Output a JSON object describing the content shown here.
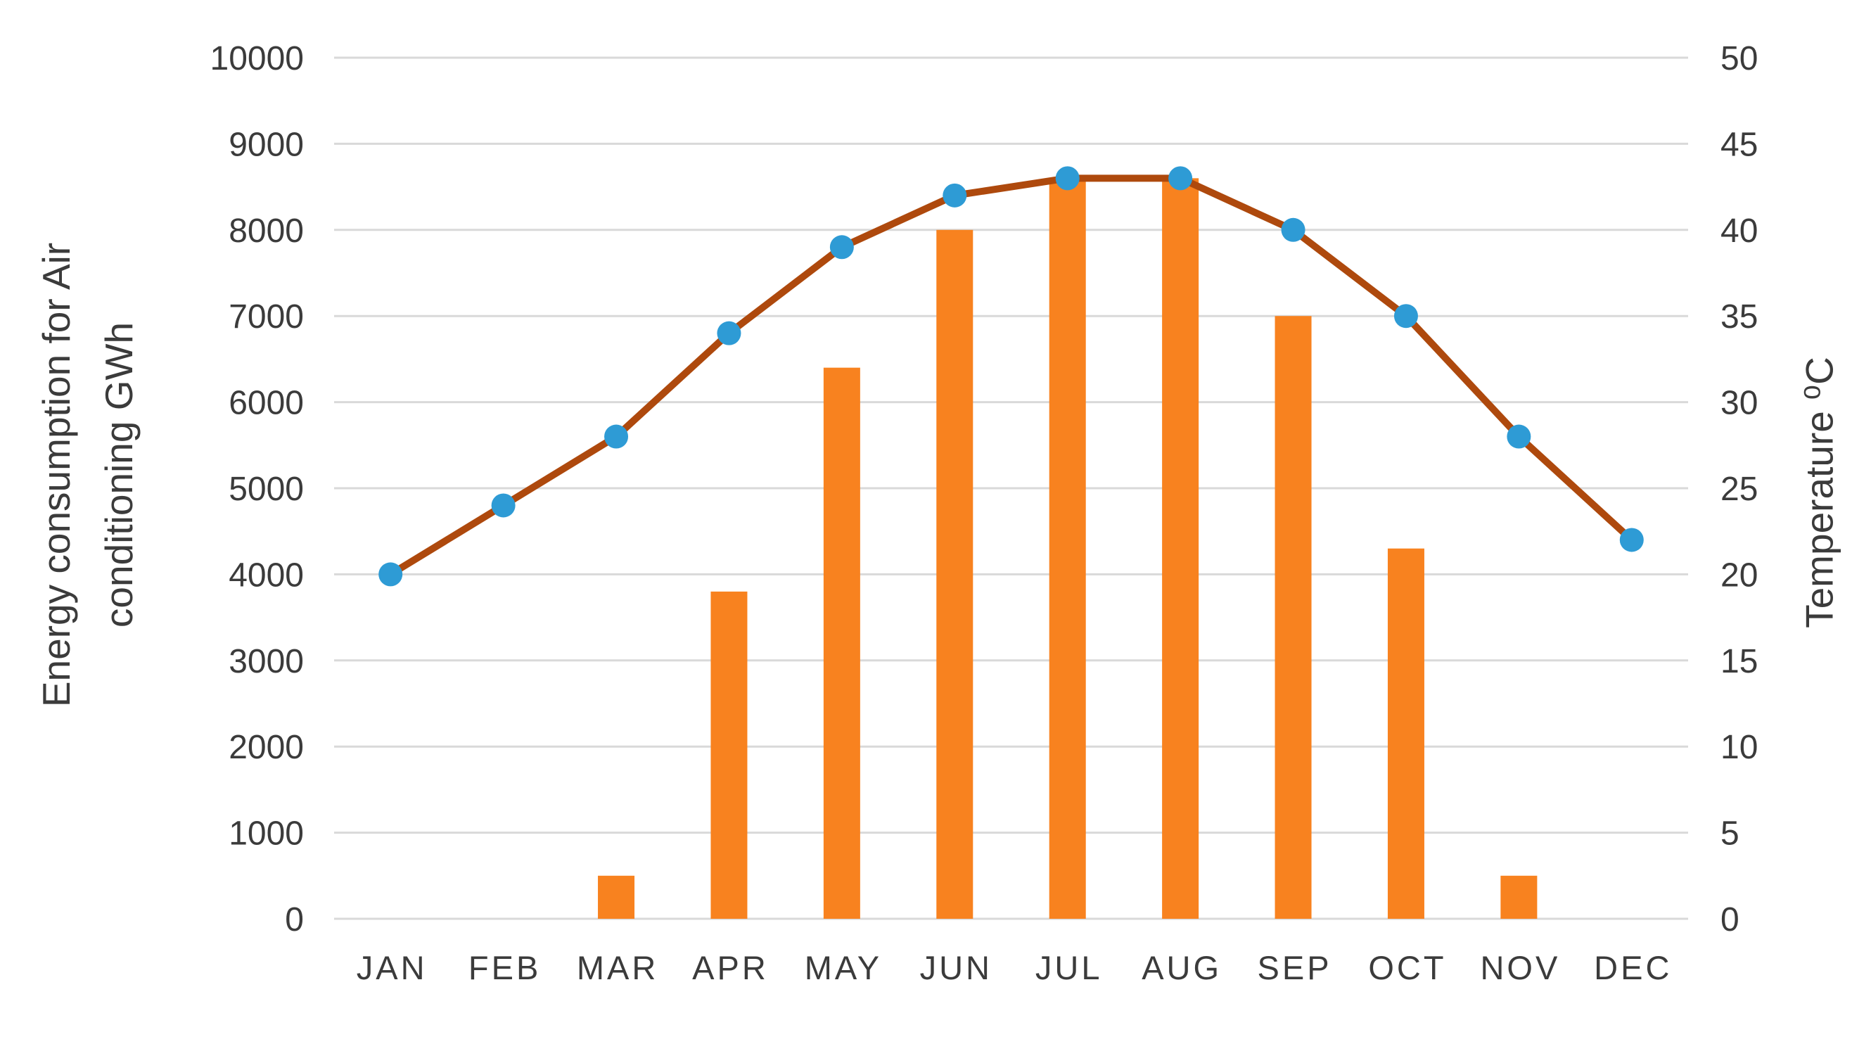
{
  "page": {
    "background": "#ffffff"
  },
  "left_axis_title": {
    "line1": "Energy consumption for Air",
    "line2": "conditioning GWh"
  },
  "right_axis_title": "Temperature ⁰C",
  "chart_data": {
    "type": "combo_bar_line",
    "title": "",
    "legend_position": "none",
    "grid": "horizontal",
    "categories": [
      "JAN",
      "FEB",
      "MAR",
      "APR",
      "MAY",
      "JUN",
      "JUL",
      "AUG",
      "SEP",
      "OCT",
      "NOV",
      "DEC"
    ],
    "series": [
      {
        "name": "Energy consumption for Air conditioning (GWh)",
        "type": "bar",
        "axis": "left",
        "color": "#F8821F",
        "values": [
          0,
          0,
          500,
          3800,
          6400,
          8000,
          8600,
          8600,
          7000,
          4300,
          500,
          0
        ]
      },
      {
        "name": "Temperature (⁰C)",
        "type": "line",
        "axis": "right",
        "color": "#AE490D",
        "marker_color": "#2E9BD5",
        "marker_shape": "circle",
        "values": [
          20,
          24,
          28,
          34,
          39,
          42,
          43,
          43,
          40,
          35,
          28,
          22
        ]
      }
    ],
    "left_axis": {
      "title": "Energy consumption for Air conditioning GWh",
      "min": 0,
      "max": 10000,
      "step": 1000,
      "tick_labels": [
        "0",
        "1000",
        "2000",
        "3000",
        "4000",
        "5000",
        "6000",
        "7000",
        "8000",
        "9000",
        "10000"
      ]
    },
    "right_axis": {
      "title": "Temperature ⁰C",
      "min": 0,
      "max": 50,
      "step": 5,
      "tick_labels": [
        "0",
        "5",
        "10",
        "15",
        "20",
        "25",
        "30",
        "35",
        "40",
        "45",
        "50"
      ]
    },
    "colors": {
      "gridline": "#D9D9D9",
      "label_text": "#3B3B3B",
      "background": "#FFFFFF"
    }
  }
}
